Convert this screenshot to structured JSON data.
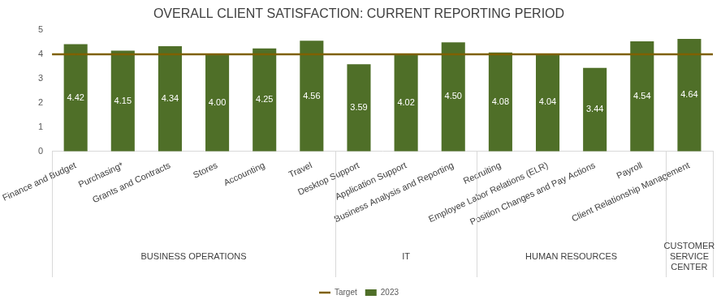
{
  "chart_data": {
    "type": "bar",
    "title": "OVERALL CLIENT SATISFACTION: CURRENT REPORTING PERIOD",
    "categories": [
      "Finance and Budget",
      "Purchasing*",
      "Grants and Contracts",
      "Stores",
      "Accounting",
      "Travel",
      "Desktop Support",
      "Application Support",
      "Business Analysis and Reporting",
      "Recruiting",
      "Employee Labor Relations (ELR)",
      "Position Changes and Pay Actions",
      "Payroll",
      "Client Relationship Management"
    ],
    "groups": [
      "BUSINESS OPERATIONS",
      "BUSINESS OPERATIONS",
      "BUSINESS OPERATIONS",
      "BUSINESS OPERATIONS",
      "BUSINESS OPERATIONS",
      "BUSINESS OPERATIONS",
      "IT",
      "IT",
      "IT",
      "HUMAN RESOURCES",
      "HUMAN RESOURCES",
      "HUMAN RESOURCES",
      "HUMAN RESOURCES",
      "CUSTOMER SERVICE CENTER"
    ],
    "series": [
      {
        "name": "2023",
        "type": "bar",
        "color": "#4f6f28",
        "values": [
          4.42,
          4.15,
          4.34,
          4.0,
          4.25,
          4.56,
          3.59,
          4.02,
          4.5,
          4.08,
          4.04,
          3.44,
          4.54,
          4.64
        ],
        "value_labels": [
          "4.42",
          "4.15",
          "4.34",
          "4.00",
          "4.25",
          "4.56",
          "3.59",
          "4.02",
          "4.50",
          "4.08",
          "4.04",
          "3.44",
          "4.54",
          "4.64"
        ],
        "data_labels": true
      },
      {
        "name": "Target",
        "type": "line",
        "color": "#7f6000",
        "values": [
          4,
          4,
          4,
          4,
          4,
          4,
          4,
          4,
          4,
          4,
          4,
          4,
          4,
          4
        ]
      }
    ],
    "ylim": [
      0,
      5
    ],
    "yticks": [
      0,
      1,
      2,
      3,
      4,
      5
    ],
    "grid": false,
    "legend": "bottom"
  }
}
